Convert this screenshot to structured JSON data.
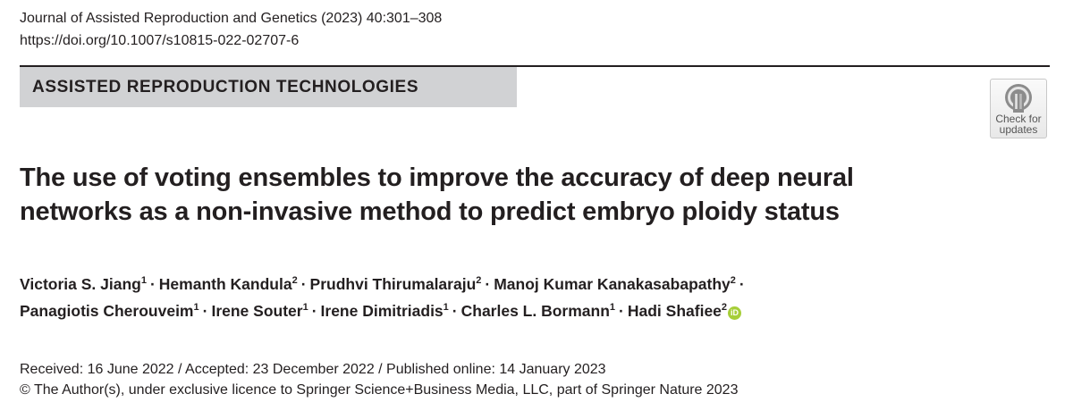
{
  "header": {
    "journal_citation": "Journal of Assisted Reproduction and Genetics (2023) 40:301–308",
    "doi": "https://doi.org/10.1007/s10815-022-02707-6"
  },
  "section": {
    "label": "ASSISTED REPRODUCTION TECHNOLOGIES"
  },
  "badge": {
    "line1": "Check for",
    "line2": "updates"
  },
  "article": {
    "title_line1": "The use of voting ensembles to improve the accuracy of deep neural",
    "title_line2": "networks as a non-invasive method to predict embryo ploidy status"
  },
  "authors": {
    "separator": "·",
    "orcid_label": "iD",
    "list": [
      {
        "name": "Victoria S. Jiang",
        "aff": "1"
      },
      {
        "name": "Hemanth Kandula",
        "aff": "2"
      },
      {
        "name": "Prudhvi Thirumalaraju",
        "aff": "2"
      },
      {
        "name": "Manoj Kumar Kanakasabapathy",
        "aff": "2"
      },
      {
        "name": "Panagiotis Cherouveim",
        "aff": "1"
      },
      {
        "name": "Irene Souter",
        "aff": "1"
      },
      {
        "name": "Irene Dimitriadis",
        "aff": "1"
      },
      {
        "name": "Charles L. Bormann",
        "aff": "1"
      },
      {
        "name": "Hadi Shafiee",
        "aff": "2"
      }
    ]
  },
  "history": {
    "dates": "Received: 16 June 2022 / Accepted: 23 December 2022 / Published online: 14 January 2023",
    "copyright": "© The Author(s), under exclusive licence to Springer Science+Business Media, LLC, part of Springer Nature 2023"
  },
  "colors": {
    "banner": "#d1d2d4",
    "text": "#231f20",
    "orcid": "#a6ce39"
  }
}
